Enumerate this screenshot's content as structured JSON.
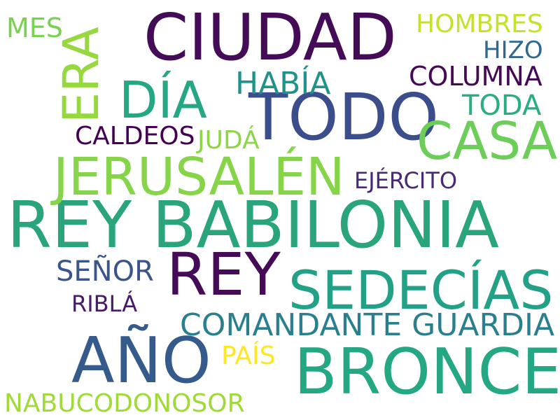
{
  "words": [
    {
      "text": "REY BABILONIA",
      "color": "#2aa57b"
    },
    {
      "text": "CIUDAD",
      "color": "#440c57"
    },
    {
      "text": "TODO",
      "color": "#3b4d8a"
    },
    {
      "text": "JERUSALÉN",
      "color": "#86d549"
    },
    {
      "text": "REY",
      "color": "#450b57"
    },
    {
      "text": "BRONCE",
      "color": "#23a883"
    },
    {
      "text": "AÑO",
      "color": "#355b8c"
    },
    {
      "text": "SEDECÍAS",
      "color": "#22a186"
    },
    {
      "text": "CASA",
      "color": "#6dcd59"
    },
    {
      "text": "DÍA",
      "color": "#24a884"
    },
    {
      "text": "ERA",
      "color": "#96d83f"
    },
    {
      "text": "COMANDANTE GUARDIA",
      "color": "#2a7f8e"
    },
    {
      "text": "HABÍA",
      "color": "#21918c"
    },
    {
      "text": "COLUMNA",
      "color": "#440a56"
    },
    {
      "text": "TODA",
      "color": "#28ae80"
    },
    {
      "text": "HOMBRES",
      "color": "#c6e12b"
    },
    {
      "text": "HIZO",
      "color": "#31688e"
    },
    {
      "text": "MES",
      "color": "#7ad151"
    },
    {
      "text": "CALDEOS",
      "color": "#440154"
    },
    {
      "text": "JUDÁ",
      "color": "#8ed645"
    },
    {
      "text": "EJÉRCITO",
      "color": "#482878"
    },
    {
      "text": "SEÑOR",
      "color": "#3a548c"
    },
    {
      "text": "RIBLÁ",
      "color": "#481a6c"
    },
    {
      "text": "PAÍS",
      "color": "#fde725"
    },
    {
      "text": "NABUCODONOSOR",
      "color": "#a0da39"
    }
  ]
}
